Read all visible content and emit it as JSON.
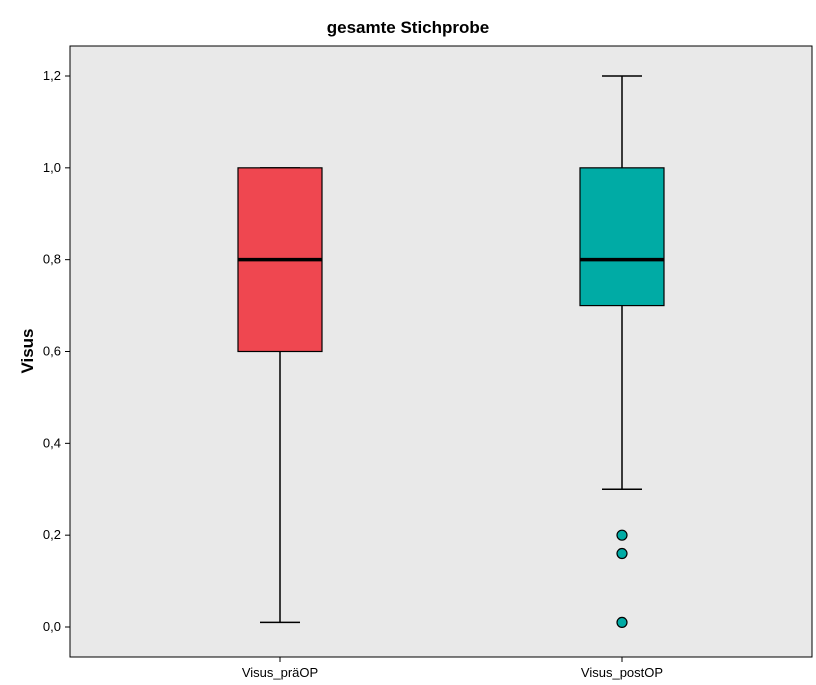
{
  "chart_data": {
    "type": "boxplot",
    "title": "gesamte Stichprobe",
    "ylabel": "Visus",
    "xlabel": "",
    "ylim": [
      -0.02,
      1.24
    ],
    "yticks": [
      0.0,
      0.2,
      0.4,
      0.6,
      0.8,
      1.0,
      1.2
    ],
    "ytick_labels": [
      "0,0",
      "0,2",
      "0,4",
      "0,6",
      "0,8",
      "1,0",
      "1,2"
    ],
    "grid": false,
    "background": "#e9e9e9",
    "categories": [
      "Visus_präOP",
      "Visus_postOP"
    ],
    "boxes": [
      {
        "name": "Visus_präOP",
        "whisker_low": 0.01,
        "q1": 0.6,
        "median": 0.8,
        "q3": 1.0,
        "whisker_high": 1.0,
        "outliers": [],
        "color": "#ef4750"
      },
      {
        "name": "Visus_postOP",
        "whisker_low": 0.3,
        "q1": 0.7,
        "median": 0.8,
        "q3": 1.0,
        "whisker_high": 1.2,
        "outliers": [
          0.2,
          0.16,
          0.01
        ],
        "color": "#00aba5"
      }
    ]
  }
}
